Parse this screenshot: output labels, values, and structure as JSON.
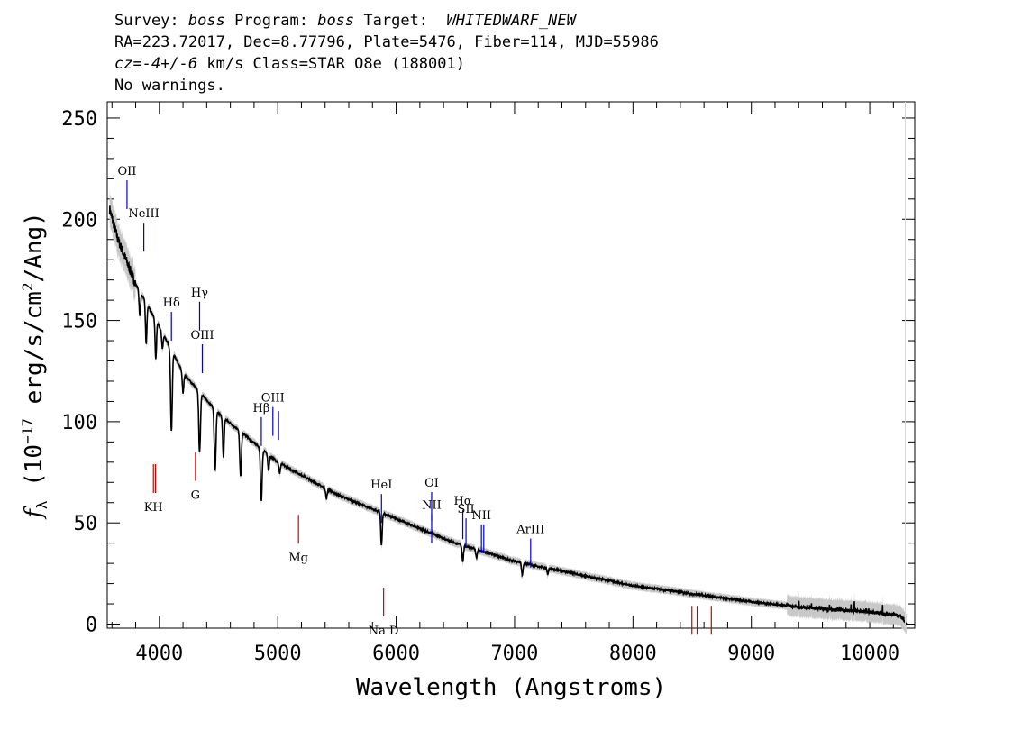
{
  "header": {
    "line1": {
      "survey_label": "Survey: ",
      "survey_value": "boss",
      "program_label": " Program: ",
      "program_value": "boss",
      "target_label": " Target:  ",
      "target_value": "WHITEDWARF_NEW"
    },
    "line2": "RA=223.72017, Dec=8.77796, Plate=5476, Fiber=114, MJD=55986",
    "line3": {
      "cz_label": "cz",
      "cz_value": "=-4+/-6",
      "rest": " km/s Class=STAR O8e (188001)"
    },
    "line4": "No warnings."
  },
  "chart_data": {
    "type": "line",
    "title": "",
    "xlabel": "Wavelength (Angstroms)",
    "ylabel": {
      "symbol": "f",
      "subscript": "λ",
      "text": " (10",
      "exponent": "−17",
      "units": " erg/s/cm",
      "units_exp": "2",
      "tail": "/Ang)"
    },
    "xlim": [
      3560,
      10380
    ],
    "ylim": [
      -2,
      258
    ],
    "x_ticks": [
      4000,
      5000,
      6000,
      7000,
      8000,
      9000,
      10000
    ],
    "x_ticklabels": [
      "4000",
      "5000",
      "6000",
      "7000",
      "8000",
      "9000",
      "10000"
    ],
    "y_ticks": [
      0,
      50,
      100,
      150,
      200,
      250
    ],
    "y_ticklabels": [
      "0",
      "50",
      "100",
      "150",
      "200",
      "250"
    ],
    "series": [
      {
        "color": "#000000",
        "continuum": {
          "x": [
            3580,
            3650,
            3800,
            4000,
            4200,
            4500,
            5000,
            5500,
            6000,
            6500,
            7000,
            7500,
            8000,
            8500,
            9000,
            9500,
            10000,
            10300
          ],
          "y": [
            205,
            190,
            168,
            147,
            124,
            104,
            80,
            64,
            52,
            40,
            31,
            25,
            19,
            15,
            11,
            8,
            6,
            4
          ]
        },
        "absorption_lines": [
          {
            "x": 3835,
            "depth": 12
          },
          {
            "x": 3889,
            "depth": 20
          },
          {
            "x": 3970,
            "depth": 19
          },
          {
            "x": 4026,
            "depth": 8
          },
          {
            "x": 4102,
            "depth": 40
          },
          {
            "x": 4200,
            "depth": 10
          },
          {
            "x": 4340,
            "depth": 30
          },
          {
            "x": 4471,
            "depth": 30
          },
          {
            "x": 4541,
            "depth": 20
          },
          {
            "x": 4686,
            "depth": 22
          },
          {
            "x": 4861,
            "depth": 26
          },
          {
            "x": 4922,
            "depth": 8
          },
          {
            "x": 5016,
            "depth": 5
          },
          {
            "x": 5411,
            "depth": 5
          },
          {
            "x": 5876,
            "depth": 16
          },
          {
            "x": 6563,
            "depth": 8
          },
          {
            "x": 6678,
            "depth": 4
          },
          {
            "x": 7065,
            "depth": 6
          },
          {
            "x": 7280,
            "depth": 3
          }
        ]
      }
    ],
    "line_markers": [
      {
        "label": "OII",
        "x": 3727,
        "y": 205,
        "color": "#0000cc",
        "side": "above"
      },
      {
        "label": "NeIII",
        "x": 3869,
        "y": 184,
        "color": "#0000cc",
        "side": "above"
      },
      {
        "label": "Hδ",
        "x": 4102,
        "y": 140,
        "color": "#0000cc",
        "side": "above"
      },
      {
        "label": "Hγ",
        "x": 4340,
        "y": 145,
        "color": "#0000cc",
        "side": "above"
      },
      {
        "label": "OIII",
        "x": 4363,
        "y": 124,
        "color": "#0000cc",
        "side": "above"
      },
      {
        "label": "Hβ",
        "x": 4861,
        "y": 88,
        "color": "#0000cc",
        "side": "above"
      },
      {
        "label": "OIII",
        "x": 4959,
        "y": 93,
        "color": "#0000cc",
        "side": "above"
      },
      {
        "label": "",
        "x": 5007,
        "y": 91,
        "color": "#0000cc",
        "side": "above"
      },
      {
        "label": "HeI",
        "x": 5876,
        "y": 50,
        "color": "#0000cc",
        "side": "above"
      },
      {
        "label": "OI",
        "x": 6300,
        "y": 51,
        "color": "#0000cc",
        "side": "above"
      },
      {
        "label": "NII",
        "x": 6300,
        "y": 40,
        "color": "#0000cc",
        "side": "above"
      },
      {
        "label": "Hα",
        "x": 6563,
        "y": 42,
        "color": "#0000cc",
        "side": "above"
      },
      {
        "label": "SII",
        "x": 6590,
        "y": 38,
        "color": "#0000cc",
        "side": "above"
      },
      {
        "label": "NII",
        "x": 6720,
        "y": 35,
        "color": "#0000cc",
        "side": "above"
      },
      {
        "label": "",
        "x": 6740,
        "y": 35,
        "color": "#0000cc",
        "side": "above"
      },
      {
        "label": "ArIII",
        "x": 7136,
        "y": 28,
        "color": "#0000cc",
        "side": "above"
      },
      {
        "label": "KH",
        "x": 3950,
        "y": 79,
        "color": "#cc0000",
        "side": "below"
      },
      {
        "label": "",
        "x": 3968,
        "y": 79,
        "color": "#cc0000",
        "side": "below"
      },
      {
        "label": "G",
        "x": 4305,
        "y": 85,
        "color": "#cc0000",
        "side": "below"
      },
      {
        "label": "Mg",
        "x": 5175,
        "y": 54,
        "color": "#cc0000",
        "side": "below"
      },
      {
        "label": "Na D",
        "x": 5894,
        "y": 18,
        "color": "#cc0000",
        "side": "below"
      },
      {
        "label": "",
        "x": 8498,
        "y": 9,
        "color": "#cc0000",
        "side": "below"
      },
      {
        "label": "",
        "x": 8542,
        "y": 9,
        "color": "#cc0000",
        "side": "below"
      },
      {
        "label": "",
        "x": 8662,
        "y": 9,
        "color": "#cc0000",
        "side": "below"
      }
    ],
    "grid": false,
    "legend": "none"
  }
}
